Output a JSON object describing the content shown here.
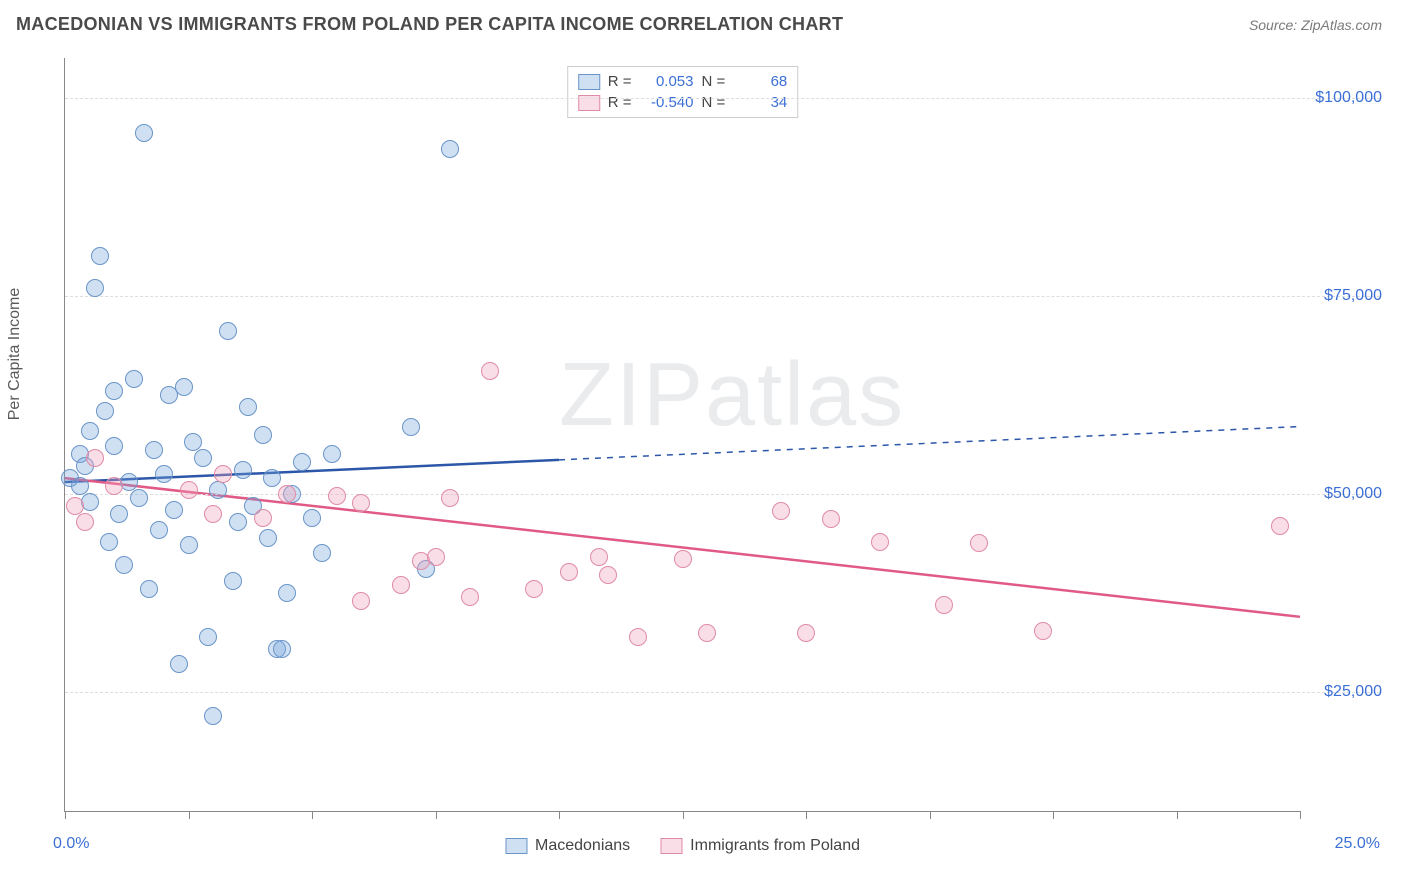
{
  "title": "MACEDONIAN VS IMMIGRANTS FROM POLAND PER CAPITA INCOME CORRELATION CHART",
  "source": "Source: ZipAtlas.com",
  "ylabel": "Per Capita Income",
  "watermark": "ZIPatlas",
  "chart": {
    "type": "scatter",
    "xlim": [
      0,
      25
    ],
    "ylim": [
      10000,
      105000
    ],
    "x_min_label": "0.0%",
    "x_max_label": "25.0%",
    "y_gridlines": [
      25000,
      50000,
      75000,
      100000
    ],
    "y_tick_labels": [
      "$25,000",
      "$50,000",
      "$75,000",
      "$100,000"
    ],
    "x_ticks": [
      0,
      2.5,
      5,
      7.5,
      10,
      12.5,
      15,
      17.5,
      20,
      22.5,
      25
    ],
    "grid_color": "#dddddd",
    "axis_color": "#888888",
    "background": "#ffffff",
    "tick_label_color": "#3b6fd6",
    "marker_radius": 9,
    "marker_border_width": 1.5,
    "watermark_color": "#d5d9dc"
  },
  "series": [
    {
      "name": "Macedonians",
      "fill": "rgba(120,165,220,0.35)",
      "stroke": "#6a95c9",
      "line_color": "#2c56a8",
      "line_width": 2.5,
      "R": "0.053",
      "N": "68",
      "trend": {
        "y_at_x0": 51500,
        "y_at_xmax": 58500,
        "solid_until_x": 10
      },
      "points": [
        [
          0.1,
          52000
        ],
        [
          0.3,
          55000
        ],
        [
          0.3,
          51000
        ],
        [
          0.4,
          53500
        ],
        [
          0.5,
          49000
        ],
        [
          0.5,
          58000
        ],
        [
          0.6,
          76000
        ],
        [
          0.7,
          80000
        ],
        [
          0.8,
          60500
        ],
        [
          0.9,
          44000
        ],
        [
          1.0,
          56000
        ],
        [
          1.0,
          63000
        ],
        [
          1.1,
          47500
        ],
        [
          1.2,
          41000
        ],
        [
          1.3,
          51500
        ],
        [
          1.4,
          64500
        ],
        [
          1.5,
          49500
        ],
        [
          1.6,
          95500
        ],
        [
          1.7,
          38000
        ],
        [
          1.8,
          55500
        ],
        [
          1.9,
          45500
        ],
        [
          2.0,
          52500
        ],
        [
          2.1,
          62500
        ],
        [
          2.2,
          48000
        ],
        [
          2.3,
          28500
        ],
        [
          2.4,
          63500
        ],
        [
          2.5,
          43500
        ],
        [
          2.6,
          56500
        ],
        [
          2.8,
          54500
        ],
        [
          2.9,
          32000
        ],
        [
          3.0,
          22000
        ],
        [
          3.1,
          50500
        ],
        [
          3.3,
          70500
        ],
        [
          3.4,
          39000
        ],
        [
          3.5,
          46500
        ],
        [
          3.6,
          53000
        ],
        [
          3.7,
          61000
        ],
        [
          3.8,
          48500
        ],
        [
          4.0,
          57500
        ],
        [
          4.1,
          44500
        ],
        [
          4.2,
          52000
        ],
        [
          4.3,
          30500
        ],
        [
          4.4,
          30500
        ],
        [
          4.5,
          37500
        ],
        [
          4.6,
          50000
        ],
        [
          4.8,
          54000
        ],
        [
          5.0,
          47000
        ],
        [
          5.2,
          42500
        ],
        [
          5.4,
          55000
        ],
        [
          7.0,
          58500
        ],
        [
          7.3,
          40500
        ],
        [
          7.8,
          93500
        ]
      ]
    },
    {
      "name": "Immigrants from Poland",
      "fill": "rgba(240,160,185,0.35)",
      "stroke": "#e08ba5",
      "line_color": "#e05a85",
      "line_width": 2.5,
      "R": "-0.540",
      "N": "34",
      "trend": {
        "y_at_x0": 52000,
        "y_at_xmax": 34500,
        "solid_until_x": 25
      },
      "points": [
        [
          0.2,
          48500
        ],
        [
          0.4,
          46500
        ],
        [
          0.6,
          54500
        ],
        [
          1.0,
          51000
        ],
        [
          2.5,
          50500
        ],
        [
          3.0,
          47500
        ],
        [
          3.2,
          52500
        ],
        [
          4.0,
          47000
        ],
        [
          4.5,
          50000
        ],
        [
          5.5,
          49800
        ],
        [
          6.0,
          36500
        ],
        [
          6.0,
          48800
        ],
        [
          6.8,
          38500
        ],
        [
          7.2,
          41500
        ],
        [
          7.5,
          42000
        ],
        [
          7.8,
          49500
        ],
        [
          8.2,
          37000
        ],
        [
          8.6,
          65500
        ],
        [
          9.5,
          38000
        ],
        [
          10.2,
          40200
        ],
        [
          10.8,
          42000
        ],
        [
          11.0,
          39800
        ],
        [
          11.6,
          32000
        ],
        [
          12.5,
          41800
        ],
        [
          13.0,
          32500
        ],
        [
          14.5,
          47800
        ],
        [
          15.0,
          32400
        ],
        [
          15.5,
          46800
        ],
        [
          16.5,
          44000
        ],
        [
          17.8,
          36000
        ],
        [
          18.5,
          43800
        ],
        [
          19.8,
          32700
        ],
        [
          24.6,
          46000
        ]
      ]
    }
  ],
  "stats_labels": {
    "R": "R =",
    "N": "N ="
  },
  "legend": {
    "series1": "Macedonians",
    "series2": "Immigrants from Poland"
  }
}
